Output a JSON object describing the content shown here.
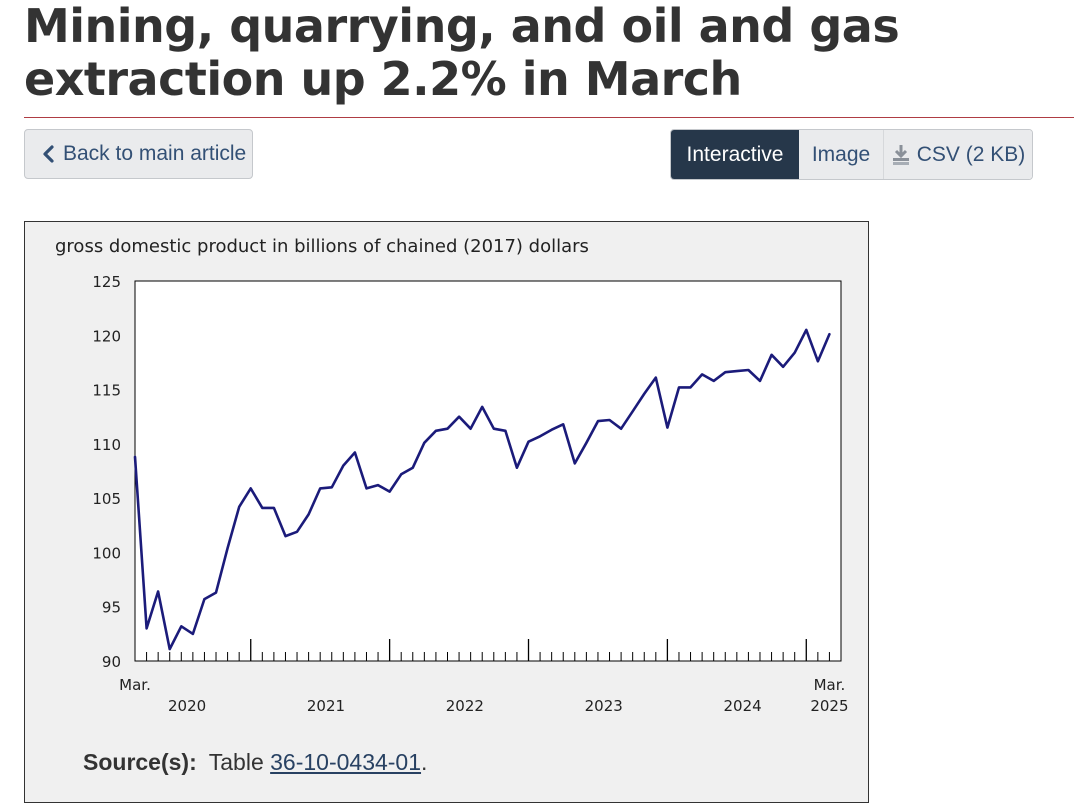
{
  "page": {
    "title": "Mining, quarrying, and oil and gas extraction up 2.2% in March"
  },
  "nav": {
    "back_label": "Back to main article"
  },
  "view_options": {
    "interactive_label": "Interactive",
    "image_label": "Image",
    "csv_label": "CSV (2 KB)"
  },
  "source": {
    "label": "Source(s):",
    "prefix": "Table",
    "link_text": "36-10-0434-01",
    "suffix": "."
  },
  "colors": {
    "line": "#1b1b7a",
    "title_rule": "#af3c43",
    "active_button": "#26374a",
    "link": "#284162"
  },
  "chart_data": {
    "type": "line",
    "title": "",
    "ylabel": "gross domestic product in billions of chained (2017) dollars",
    "xlabel": "",
    "ylim": [
      90,
      125
    ],
    "yticks": [
      90,
      95,
      100,
      105,
      110,
      115,
      120,
      125
    ],
    "grid": false,
    "x_start": "2020-03",
    "x_end": "2025-03",
    "month_range": [
      0,
      61
    ],
    "year_ticks": [
      {
        "label": "2020",
        "month_index": 10
      },
      {
        "label": "2021",
        "month_index": 22
      },
      {
        "label": "2022",
        "month_index": 34
      },
      {
        "label": "2023",
        "month_index": 46
      },
      {
        "label": "2024",
        "month_index": 58
      }
    ],
    "end_labels": [
      {
        "top": "Mar.",
        "bottom": "",
        "month_index": 0
      },
      {
        "top": "Mar.",
        "bottom": "2025",
        "month_index": 60
      }
    ],
    "series": [
      {
        "name": "Mining, quarrying, and oil and gas extraction",
        "values": [
          108.8,
          93.0,
          96.4,
          91.1,
          93.2,
          92.5,
          95.7,
          96.3,
          100.4,
          104.2,
          105.9,
          104.1,
          104.1,
          101.5,
          101.9,
          103.5,
          105.9,
          106.0,
          108.0,
          109.2,
          105.9,
          106.2,
          105.6,
          107.2,
          107.8,
          110.1,
          111.2,
          111.4,
          112.5,
          111.4,
          113.4,
          111.4,
          111.2,
          107.8,
          110.2,
          110.7,
          111.3,
          111.8,
          108.2,
          110.1,
          112.1,
          112.2,
          111.4,
          113.0,
          114.6,
          116.1,
          111.5,
          115.2,
          115.2,
          116.4,
          115.8,
          116.6,
          116.7,
          116.8,
          115.8,
          118.2,
          117.1,
          118.4,
          120.5,
          117.6,
          120.1
        ]
      }
    ]
  }
}
